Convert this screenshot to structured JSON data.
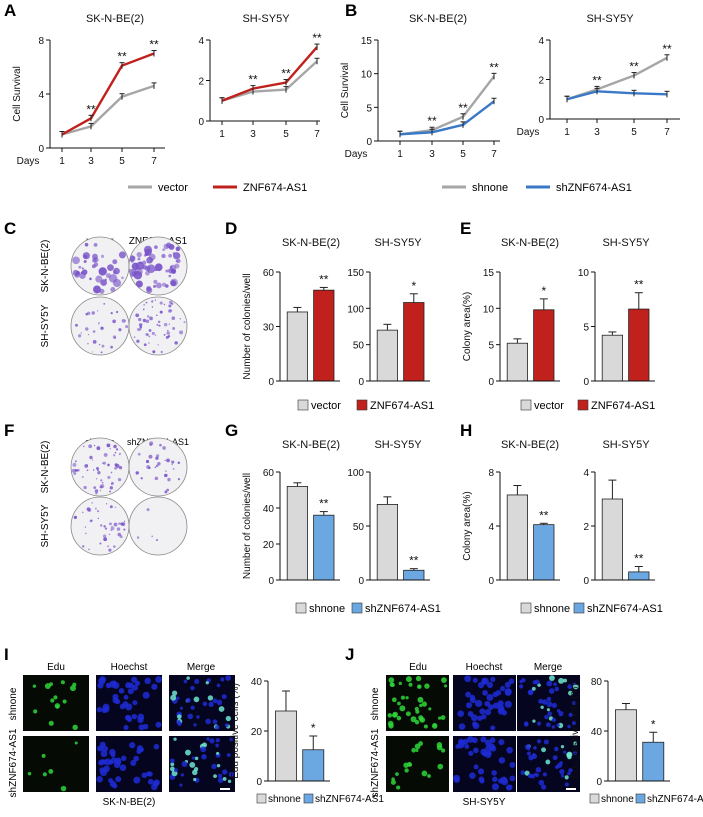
{
  "colors": {
    "vector": "#a6a6a6",
    "znf": "#c0211c",
    "shnone_line": "#a6a6a6",
    "sh_line": "#3a78c8",
    "bar_grey": "#d9d9d9",
    "bar_red": "#c0211c",
    "bar_blue": "#6ba8e2",
    "edu": "#2fd63a",
    "hoechst": "#1f2bd6",
    "merge": "#6fe6d0",
    "colony": "#7a55c9"
  },
  "panels": {
    "A": "A",
    "B": "B",
    "C": "C",
    "D": "D",
    "E": "E",
    "F": "F",
    "G": "G",
    "H": "H",
    "I": "I",
    "J": "J"
  },
  "legends": {
    "A": [
      "vector",
      "ZNF674-AS1"
    ],
    "B": [
      "shnone",
      "shZNF674-AS1"
    ],
    "D": [
      "vector",
      "ZNF674-AS1"
    ],
    "E": [
      "vector",
      "ZNF674-AS1"
    ],
    "G": [
      "shnone",
      "shZNF674-AS1"
    ],
    "H": [
      "shnone",
      "shZNF674-AS1"
    ],
    "I": [
      "shnone",
      "shZNF674-AS1"
    ],
    "J": [
      "shnone",
      "shZNF674-AS1"
    ]
  },
  "images": {
    "C": {
      "cols": [
        "vector",
        "ZNF674-AS1"
      ],
      "rows": [
        "SK-N-BE(2)",
        "SH-SY5Y"
      ]
    },
    "F": {
      "cols": [
        "shnone",
        "shZNF674-AS1"
      ],
      "rows": [
        "SK-N-BE(2)",
        "SH-SY5Y"
      ]
    },
    "I": {
      "cols": [
        "Edu",
        "Hoechst",
        "Merge"
      ],
      "rows": [
        "shnone",
        "shZNF674-AS1"
      ],
      "caption": "SK-N-BE(2)"
    },
    "J": {
      "cols": [
        "Edu",
        "Hoechst",
        "Merge"
      ],
      "rows": [
        "shnone",
        "shZNF674-AS1"
      ],
      "caption": "SH-SY5Y"
    }
  },
  "chart_data": [
    {
      "id": "A1",
      "type": "line",
      "title": "SK-N-BE(2)",
      "xlabel": "Days",
      "ylabel": "Cell Survival",
      "x": [
        1,
        3,
        5,
        7
      ],
      "ylim": [
        0,
        8
      ],
      "yticks": [
        0,
        4,
        8
      ],
      "series": [
        {
          "name": "vector",
          "values": [
            1.0,
            1.6,
            3.8,
            4.6
          ]
        },
        {
          "name": "ZNF674-AS1",
          "values": [
            1.0,
            2.2,
            6.1,
            7.0
          ]
        }
      ],
      "annotations": [
        "",
        "**",
        "**",
        "**"
      ]
    },
    {
      "id": "A2",
      "type": "line",
      "title": "SH-SY5Y",
      "xlabel": "",
      "ylabel": "",
      "x": [
        1,
        3,
        5,
        7
      ],
      "ylim": [
        0,
        4
      ],
      "yticks": [
        0,
        2,
        4
      ],
      "series": [
        {
          "name": "vector",
          "values": [
            1.0,
            1.45,
            1.55,
            2.95
          ]
        },
        {
          "name": "ZNF674-AS1",
          "values": [
            1.0,
            1.6,
            1.9,
            3.65
          ]
        }
      ],
      "annotations": [
        "",
        "**",
        "**",
        "**"
      ]
    },
    {
      "id": "B1",
      "type": "line",
      "title": "SK-N-BE(2)",
      "xlabel": "Days",
      "ylabel": "Cell Survival",
      "x": [
        1,
        3,
        5,
        7
      ],
      "ylim": [
        0,
        15
      ],
      "yticks": [
        0,
        5,
        10,
        15
      ],
      "series": [
        {
          "name": "shnone",
          "values": [
            1.0,
            1.6,
            3.6,
            9.6
          ]
        },
        {
          "name": "shZNF674-AS1",
          "values": [
            1.0,
            1.3,
            2.4,
            5.9
          ]
        }
      ],
      "annotations": [
        "",
        "**",
        "**",
        "**"
      ]
    },
    {
      "id": "B2",
      "type": "line",
      "title": "SH-SY5Y",
      "xlabel": "Days",
      "ylabel": "",
      "x": [
        1,
        3,
        5,
        7
      ],
      "ylim": [
        0,
        4
      ],
      "yticks": [
        0,
        2,
        4
      ],
      "series": [
        {
          "name": "shnone",
          "values": [
            1.0,
            1.5,
            2.2,
            3.1
          ]
        },
        {
          "name": "shZNF674-AS1",
          "values": [
            1.0,
            1.4,
            1.3,
            1.25
          ]
        }
      ],
      "annotations": [
        "",
        "**",
        "**",
        "**"
      ]
    },
    {
      "id": "D1",
      "type": "bar",
      "title": "SK-N-BE(2)",
      "ylabel": "Number of colonies/well",
      "categories": [
        "vector",
        "ZNF674-AS1"
      ],
      "values": [
        38,
        50
      ],
      "errors": [
        2.5,
        1.5
      ],
      "ylim": [
        0,
        60
      ],
      "yticks": [
        0,
        30,
        60
      ],
      "annotations": [
        "",
        "**"
      ]
    },
    {
      "id": "D2",
      "type": "bar",
      "title": "SH-SY5Y",
      "ylabel": "",
      "categories": [
        "vector",
        "ZNF674-AS1"
      ],
      "values": [
        70,
        108
      ],
      "errors": [
        8,
        12
      ],
      "ylim": [
        0,
        150
      ],
      "yticks": [
        0,
        50,
        100,
        150
      ],
      "annotations": [
        "",
        "*"
      ]
    },
    {
      "id": "E1",
      "type": "bar",
      "title": "SK-N-BE(2)",
      "ylabel": "Colony area(%)",
      "categories": [
        "vector",
        "ZNF674-AS1"
      ],
      "values": [
        5.2,
        9.8
      ],
      "errors": [
        0.6,
        1.5
      ],
      "ylim": [
        0,
        15
      ],
      "yticks": [
        0,
        5,
        10,
        15
      ],
      "annotations": [
        "",
        "*"
      ]
    },
    {
      "id": "E2",
      "type": "bar",
      "title": "SH-SY5Y",
      "ylabel": "",
      "categories": [
        "vector",
        "ZNF674-AS1"
      ],
      "values": [
        4.2,
        6.6
      ],
      "errors": [
        0.3,
        1.5
      ],
      "ylim": [
        0,
        10
      ],
      "yticks": [
        0,
        5,
        10
      ],
      "annotations": [
        "",
        "**"
      ]
    },
    {
      "id": "G1",
      "type": "bar",
      "title": "SK-N-BE(2)",
      "ylabel": "Number of colonies/well",
      "categories": [
        "shnone",
        "shZNF674-AS1"
      ],
      "values": [
        52,
        36
      ],
      "errors": [
        2,
        2
      ],
      "ylim": [
        0,
        60
      ],
      "yticks": [
        0,
        20,
        40,
        60
      ],
      "annotations": [
        "",
        "**"
      ]
    },
    {
      "id": "G2",
      "type": "bar",
      "title": "SH-SY5Y",
      "ylabel": "",
      "categories": [
        "shnone",
        "shZNF674-AS1"
      ],
      "values": [
        70,
        9
      ],
      "errors": [
        7,
        1.5
      ],
      "ylim": [
        0,
        100
      ],
      "yticks": [
        0,
        50,
        100
      ],
      "annotations": [
        "",
        "**"
      ]
    },
    {
      "id": "H1",
      "type": "bar",
      "title": "SK-N-BE(2)",
      "ylabel": "Colony area(%)",
      "categories": [
        "shnone",
        "shZNF674-AS1"
      ],
      "values": [
        6.3,
        4.1
      ],
      "errors": [
        0.7,
        0.1
      ],
      "ylim": [
        0,
        8
      ],
      "yticks": [
        0,
        4,
        8
      ],
      "annotations": [
        "",
        "**"
      ]
    },
    {
      "id": "H2",
      "type": "bar",
      "title": "SH-SY5Y",
      "ylabel": "",
      "categories": [
        "shnone",
        "shZNF674-AS1"
      ],
      "values": [
        3.0,
        0.3
      ],
      "errors": [
        0.7,
        0.2
      ],
      "ylim": [
        0,
        4
      ],
      "yticks": [
        0,
        2,
        4
      ],
      "annotations": [
        "",
        "**"
      ]
    },
    {
      "id": "I1",
      "type": "bar",
      "title": "",
      "ylabel": "Edu positive cells (%)",
      "categories": [
        "shnone",
        "shZNF674-AS1"
      ],
      "values": [
        28,
        12.5
      ],
      "errors": [
        8,
        5.5
      ],
      "ylim": [
        0,
        40
      ],
      "yticks": [
        0,
        20,
        40
      ],
      "annotations": [
        "",
        "*"
      ]
    },
    {
      "id": "J1",
      "type": "bar",
      "title": "",
      "ylabel": "Edu positive cells (%)",
      "categories": [
        "shnone",
        "shZNF674-AS1"
      ],
      "values": [
        57,
        31
      ],
      "errors": [
        5,
        8
      ],
      "ylim": [
        0,
        80
      ],
      "yticks": [
        0,
        40,
        80
      ],
      "annotations": [
        "",
        "*"
      ]
    }
  ]
}
